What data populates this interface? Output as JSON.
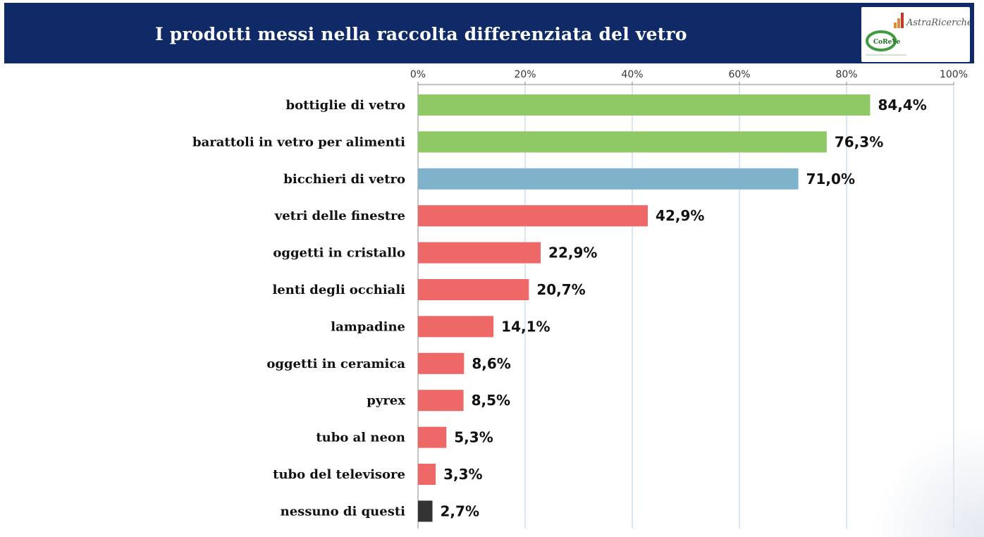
{
  "header": {
    "title": "I prodotti messi nella raccolta differenziata del vetro"
  },
  "logos": {
    "primary_text": "AstraRicerche",
    "secondary_text": "CoReVe",
    "icon": "astra-ricerche-coreve-logo"
  },
  "colors": {
    "header_bg": "#0f2a66",
    "green": "#8ec965",
    "blue": "#7fb3cb",
    "red": "#ef6868",
    "dark": "#333333",
    "grid": "#b9cde0"
  },
  "chart_data": {
    "type": "bar",
    "orientation": "horizontal",
    "categories": [
      "bottiglie di vetro",
      "barattoli in vetro per alimenti",
      "bicchieri di vetro",
      "vetri delle finestre",
      "oggetti in cristallo",
      "lenti degli occhiali",
      "lampadine",
      "oggetti in ceramica",
      "pyrex",
      "tubo al neon",
      "tubo del televisore",
      "nessuno di questi"
    ],
    "values": [
      84.4,
      76.3,
      71.0,
      42.9,
      22.9,
      20.7,
      14.1,
      8.6,
      8.5,
      5.3,
      3.3,
      2.7
    ],
    "value_labels": [
      "84,4%",
      "76,3%",
      "71,0%",
      "42,9%",
      "22,9%",
      "20,7%",
      "14,1%",
      "8,6%",
      "8,5%",
      "5,3%",
      "3,3%",
      "2,7%"
    ],
    "bar_colors": [
      "green",
      "green",
      "blue",
      "red",
      "red",
      "red",
      "red",
      "red",
      "red",
      "red",
      "red",
      "dark"
    ],
    "xlim": [
      0,
      100
    ],
    "xticks": [
      "0%",
      "20%",
      "40%",
      "60%",
      "80%",
      "100%"
    ],
    "axis_position": "top",
    "grid": true,
    "legend": "none"
  }
}
